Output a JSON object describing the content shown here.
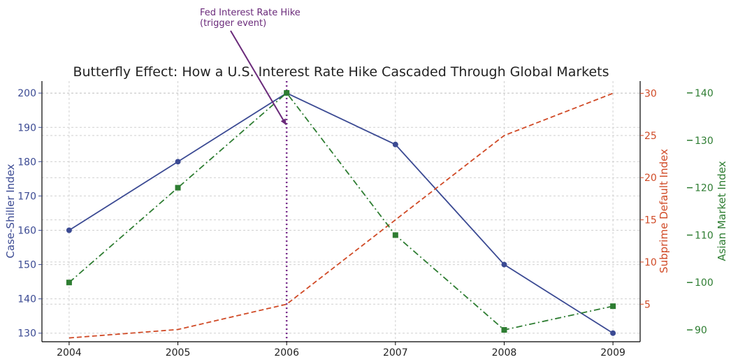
{
  "chart_data": {
    "type": "line",
    "title": "Butterfly Effect: How a U.S. Interest Rate Hike Cascaded Through Global Markets",
    "xlabel": "",
    "x": [
      2004,
      2005,
      2006,
      2007,
      2008,
      2009
    ],
    "xlim": [
      2003.75,
      2009.25
    ],
    "grid": true,
    "axes": {
      "left": {
        "label": "Case-Shiller Index",
        "ylim": [
          127.5,
          203.5
        ],
        "ticks": [
          130,
          140,
          150,
          160,
          170,
          180,
          190,
          200
        ],
        "color": "#3b4a93"
      },
      "right1": {
        "label": "Subprime Default Index",
        "ylim": [
          0.55,
          31.45
        ],
        "ticks": [
          5,
          10,
          15,
          20,
          25,
          30
        ],
        "color": "#d04a26"
      },
      "right2": {
        "label": "Asian Market Index",
        "ylim": [
          87.5,
          142.5
        ],
        "ticks": [
          90,
          100,
          110,
          120,
          130,
          140
        ],
        "color": "#2e7d32"
      }
    },
    "series": [
      {
        "axis": "left",
        "color": "#3b4a93",
        "line_style": "solid",
        "marker": "circle",
        "values": [
          160,
          180,
          200,
          185,
          150,
          130
        ]
      },
      {
        "axis": "right1",
        "color": "#d04a26",
        "line_style": "dashed",
        "marker": "none",
        "values": [
          1,
          2,
          5,
          15,
          25,
          30
        ]
      },
      {
        "axis": "right2",
        "color": "#2e7d32",
        "line_style": "dashdot",
        "marker": "square",
        "values": [
          100,
          120,
          140,
          110,
          90,
          95
        ]
      }
    ],
    "vline": {
      "x": 2006,
      "color": "#7b2f8e",
      "style": "dotted"
    },
    "annotation": {
      "lines": [
        "Fed Interest Rate Hike",
        "(trigger event)"
      ],
      "color": "#6a2a7a",
      "points_to": {
        "x": 2006,
        "y": 190,
        "axis": "left"
      }
    }
  }
}
